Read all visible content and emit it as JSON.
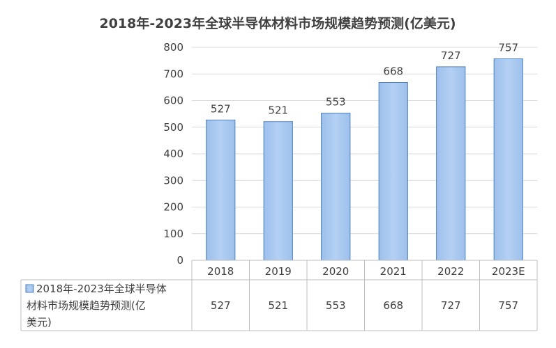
{
  "chart_data": {
    "type": "bar",
    "title": "2018年-2023年全球半导体材料市场规模趋势预测(亿美元)",
    "categories": [
      "2018",
      "2019",
      "2020",
      "2021",
      "2022",
      "2023E"
    ],
    "series": [
      {
        "name": "2018年-2023年全球半导体材料市场规模趋势预测(亿美元)",
        "values": [
          527,
          521,
          553,
          668,
          727,
          757
        ]
      }
    ],
    "ylim": [
      0,
      800
    ],
    "yticks": [
      0,
      100,
      200,
      300,
      400,
      500,
      600,
      700,
      800
    ],
    "grid": true,
    "data_table": true,
    "legend": "data-table",
    "colors": {
      "bar_fill": "#a9c8ee",
      "bar_stroke": "#4f81bd",
      "text": "#404040",
      "axis": "#bfbfbf"
    }
  },
  "table": {
    "legend_lines": [
      "2018年-2023年全球半导体",
      "材料市场规模趋势预测(亿",
      "美元)"
    ]
  }
}
